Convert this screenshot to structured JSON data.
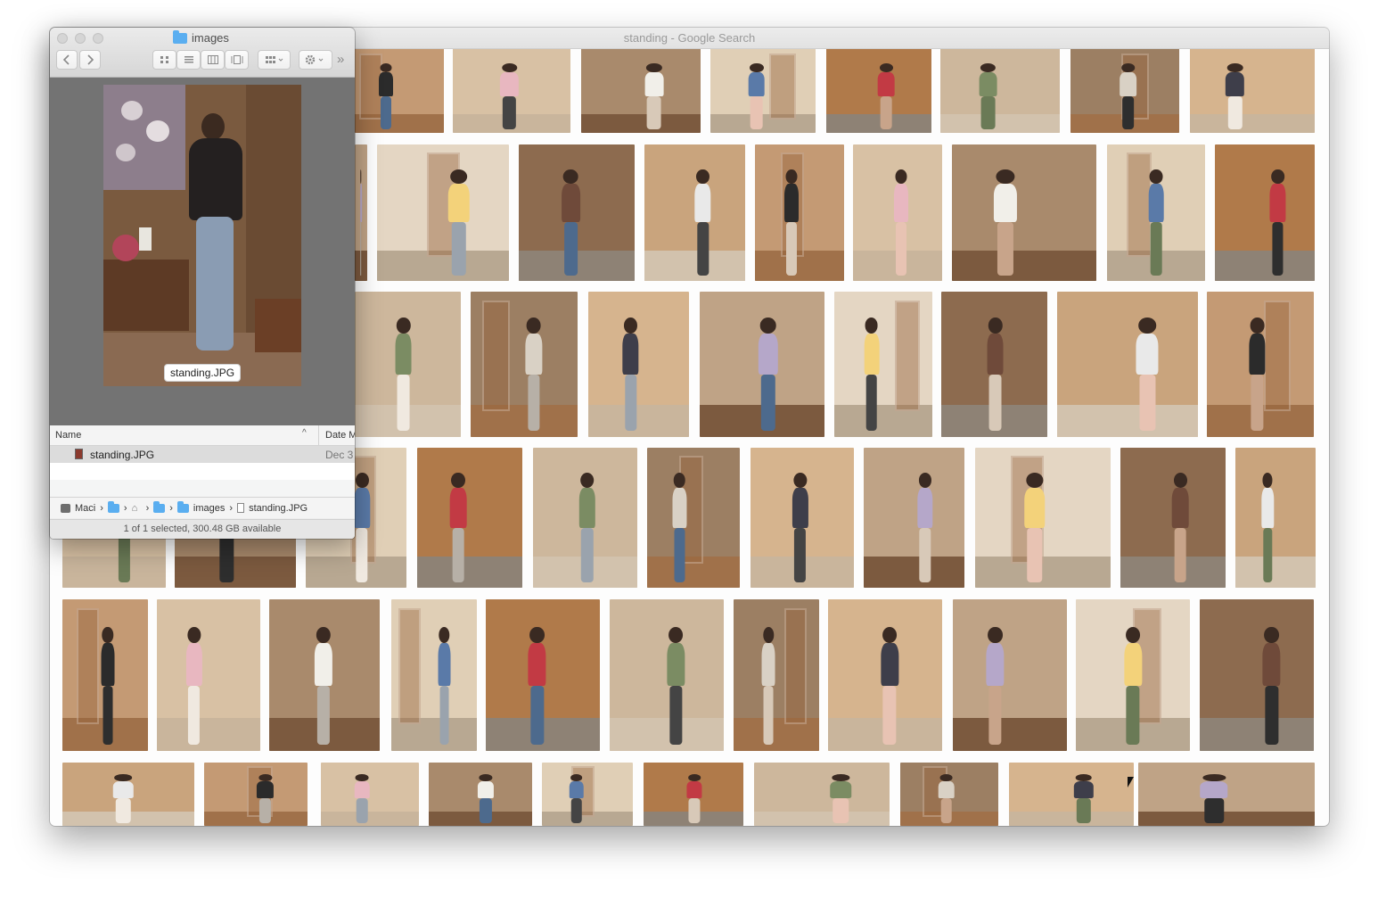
{
  "browser": {
    "title": "standing - Google Search"
  },
  "finder": {
    "title": "images",
    "preview_label": "standing.JPG",
    "columns": {
      "name": "Name",
      "date": "Date M"
    },
    "file": {
      "name": "standing.JPG",
      "date": "Dec 3"
    },
    "path": {
      "drive": "Maci",
      "images": "images",
      "file": "standing.JPG"
    },
    "status": "1 of 1 selected, 300.48 GB available",
    "more": "»"
  },
  "colors": {
    "window_bg": "#fdfdfd",
    "finder_preview_bg": "#737373",
    "selection": "#dcdcdc",
    "folder_blue": "#5aaef0"
  }
}
